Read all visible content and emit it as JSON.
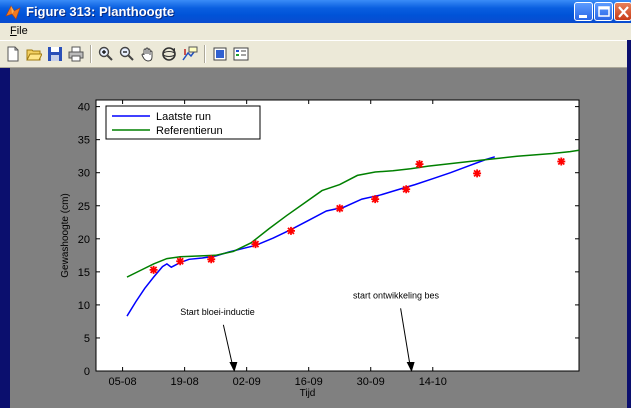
{
  "window": {
    "title": "Figure 313:  Planthoogte",
    "menu_file": "File"
  },
  "toolbar": {
    "icons": [
      "new-file-icon",
      "open-folder-icon",
      "save-icon",
      "print-icon",
      "zoom-in-icon",
      "zoom-out-icon",
      "pan-hand-icon",
      "rotate-3d-icon",
      "data-cursor-icon",
      "colorbar-icon",
      "legend-icon"
    ]
  },
  "colors": {
    "laatste_run": "#0000ff",
    "referentierun": "#008000",
    "measurements": "#ff0000",
    "plot_background": "#808080",
    "axes_background": "#ffffff"
  },
  "chart_data": {
    "type": "line",
    "title": "",
    "xlabel": "Tijd",
    "ylabel": "Gewashoogte (cm)",
    "ylim": [
      0,
      41
    ],
    "yticks": [
      0,
      5,
      10,
      15,
      20,
      25,
      30,
      35,
      40
    ],
    "xlim": [
      "2000-07-30",
      "2000-11-16"
    ],
    "xticks": [
      {
        "date": "2000-08-05",
        "label": "05-08"
      },
      {
        "date": "2000-08-19",
        "label": "19-08"
      },
      {
        "date": "2000-09-02",
        "label": "02-09"
      },
      {
        "date": "2000-09-16",
        "label": "16-09"
      },
      {
        "date": "2000-09-30",
        "label": "30-09"
      },
      {
        "date": "2000-10-14",
        "label": "14-10"
      }
    ],
    "legend": {
      "placement": "top-left"
    },
    "series": [
      {
        "name": "Laatste run",
        "color": "#0000ff",
        "points": [
          [
            "2000-08-06",
            8.3
          ],
          [
            "2000-08-08",
            10.5
          ],
          [
            "2000-08-10",
            12.5
          ],
          [
            "2000-08-12",
            14.2
          ],
          [
            "2000-08-14",
            15.8
          ],
          [
            "2000-08-15",
            16.2
          ],
          [
            "2000-08-16",
            15.7
          ],
          [
            "2000-08-18",
            16.4
          ],
          [
            "2000-08-20",
            16.9
          ],
          [
            "2000-08-23",
            17.1
          ],
          [
            "2000-08-26",
            17.4
          ],
          [
            "2000-08-29",
            18.0
          ],
          [
            "2000-09-01",
            18.5
          ],
          [
            "2000-09-04",
            19.0
          ],
          [
            "2000-09-08",
            20.1
          ],
          [
            "2000-09-12",
            21.4
          ],
          [
            "2000-09-16",
            22.8
          ],
          [
            "2000-09-20",
            24.2
          ],
          [
            "2000-09-24",
            24.8
          ],
          [
            "2000-09-28",
            26.0
          ],
          [
            "2000-10-02",
            26.6
          ],
          [
            "2000-10-06",
            27.4
          ],
          [
            "2000-10-10",
            28.2
          ],
          [
            "2000-10-14",
            29.1
          ],
          [
            "2000-10-18",
            30.0
          ],
          [
            "2000-10-22",
            31.0
          ],
          [
            "2000-10-26",
            32.0
          ],
          [
            "2000-10-28",
            32.4
          ]
        ]
      },
      {
        "name": "Referentierun",
        "color": "#008000",
        "points": [
          [
            "2000-08-06",
            14.2
          ],
          [
            "2000-08-09",
            15.2
          ],
          [
            "2000-08-12",
            16.2
          ],
          [
            "2000-08-15",
            17.0
          ],
          [
            "2000-08-18",
            17.3
          ],
          [
            "2000-08-22",
            17.4
          ],
          [
            "2000-08-26",
            17.5
          ],
          [
            "2000-08-30",
            18.1
          ],
          [
            "2000-09-03",
            19.4
          ],
          [
            "2000-09-07",
            21.5
          ],
          [
            "2000-09-11",
            23.5
          ],
          [
            "2000-09-15",
            25.4
          ],
          [
            "2000-09-19",
            27.3
          ],
          [
            "2000-09-23",
            28.2
          ],
          [
            "2000-09-27",
            29.6
          ],
          [
            "2000-10-01",
            30.1
          ],
          [
            "2000-10-05",
            30.3
          ],
          [
            "2000-10-09",
            30.6
          ],
          [
            "2000-10-13",
            31.0
          ],
          [
            "2000-10-17",
            31.3
          ],
          [
            "2000-10-21",
            31.6
          ],
          [
            "2000-10-25",
            31.9
          ],
          [
            "2000-10-29",
            32.2
          ],
          [
            "2000-11-02",
            32.5
          ],
          [
            "2000-11-06",
            32.7
          ],
          [
            "2000-11-10",
            32.9
          ],
          [
            "2000-11-14",
            33.2
          ],
          [
            "2000-11-16",
            33.4
          ]
        ]
      },
      {
        "name": "",
        "color": "#ff0000",
        "marker": "star",
        "points": [
          [
            "2000-08-12",
            15.3
          ],
          [
            "2000-08-18",
            16.6
          ],
          [
            "2000-08-25",
            16.9
          ],
          [
            "2000-09-04",
            19.2
          ],
          [
            "2000-09-12",
            21.2
          ],
          [
            "2000-09-23",
            24.6
          ],
          [
            "2000-10-01",
            26.0
          ],
          [
            "2000-10-08",
            27.5
          ],
          [
            "2000-10-11",
            31.3
          ],
          [
            "2000-10-24",
            29.9
          ],
          [
            "2000-11-12",
            31.7
          ]
        ]
      }
    ],
    "annotations": [
      {
        "text": "Start bloei-inductie",
        "x": "2000-08-18",
        "y": 8.5,
        "arrow_to": [
          "2000-08-30",
          0
        ]
      },
      {
        "text": "start ontwikkeling bes",
        "x": "2000-09-26",
        "y": 11.0,
        "arrow_to": [
          "2000-10-09",
          0
        ]
      }
    ]
  }
}
